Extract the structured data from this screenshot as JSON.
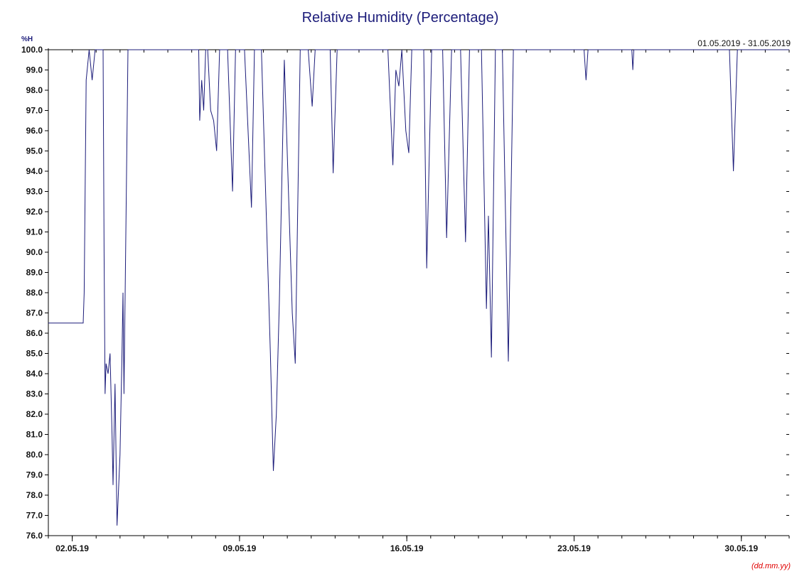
{
  "chart_data": {
    "type": "line",
    "title": "Relative Humidity (Percentage)",
    "ylabel": "%H",
    "xlabel_format": "(dd.mm.yy)",
    "date_range": "01.05.2019 - 31.05.2019",
    "x_start": "2019-05-01",
    "x_end": "2019-06-01",
    "ylim": [
      76,
      100
    ],
    "y_ticks": [
      "100.0",
      "99.0",
      "98.0",
      "97.0",
      "96.0",
      "95.0",
      "94.0",
      "93.0",
      "92.0",
      "91.0",
      "90.0",
      "89.0",
      "88.0",
      "87.0",
      "86.0",
      "85.0",
      "84.0",
      "83.0",
      "82.0",
      "81.0",
      "80.0",
      "79.0",
      "78.0",
      "77.0",
      "76.0"
    ],
    "x_ticks": [
      {
        "date": "2019-05-02",
        "label": "02.05.19"
      },
      {
        "date": "2019-05-09",
        "label": "09.05.19"
      },
      {
        "date": "2019-05-16",
        "label": "16.05.19"
      },
      {
        "date": "2019-05-23",
        "label": "23.05.19"
      },
      {
        "date": "2019-05-30",
        "label": "30.05.19"
      }
    ],
    "grid": false,
    "line_color": "#1c1c7a",
    "series": [
      {
        "name": "",
        "points": [
          [
            "2019-05-01 00:00",
            86.5
          ],
          [
            "2019-05-02 11:00",
            86.5
          ],
          [
            "2019-05-02 12:00",
            88.0
          ],
          [
            "2019-05-02 14:00",
            98.5
          ],
          [
            "2019-05-02 17:00",
            100.0
          ],
          [
            "2019-05-02 20:00",
            98.5
          ],
          [
            "2019-05-02 23:00",
            100.0
          ],
          [
            "2019-05-03 07:00",
            100.0
          ],
          [
            "2019-05-03 08:00",
            90.0
          ],
          [
            "2019-05-03 09:00",
            83.0
          ],
          [
            "2019-05-03 10:00",
            84.5
          ],
          [
            "2019-05-03 12:00",
            84.0
          ],
          [
            "2019-05-03 14:00",
            85.0
          ],
          [
            "2019-05-03 15:00",
            83.0
          ],
          [
            "2019-05-03 16:00",
            81.0
          ],
          [
            "2019-05-03 17:00",
            78.5
          ],
          [
            "2019-05-03 19:00",
            83.5
          ],
          [
            "2019-05-03 21:00",
            76.5
          ],
          [
            "2019-05-04 00:00",
            80.0
          ],
          [
            "2019-05-04 02:00",
            85.0
          ],
          [
            "2019-05-04 03:00",
            88.0
          ],
          [
            "2019-05-04 04:00",
            83.0
          ],
          [
            "2019-05-04 08:00",
            100.0
          ],
          [
            "2019-05-07 07:00",
            100.0
          ],
          [
            "2019-05-07 08:00",
            96.5
          ],
          [
            "2019-05-07 10:00",
            98.5
          ],
          [
            "2019-05-07 12:00",
            97.0
          ],
          [
            "2019-05-07 14:00",
            100.0
          ],
          [
            "2019-05-07 16:00",
            100.0
          ],
          [
            "2019-05-07 19:00",
            97.0
          ],
          [
            "2019-05-07 22:00",
            96.5
          ],
          [
            "2019-05-08 01:00",
            95.0
          ],
          [
            "2019-05-08 04:00",
            100.0
          ],
          [
            "2019-05-08 12:00",
            100.0
          ],
          [
            "2019-05-08 17:00",
            93.0
          ],
          [
            "2019-05-08 20:00",
            100.0
          ],
          [
            "2019-05-09 05:00",
            100.0
          ],
          [
            "2019-05-09 12:00",
            92.2
          ],
          [
            "2019-05-09 15:00",
            100.0
          ],
          [
            "2019-05-09 22:00",
            100.0
          ],
          [
            "2019-05-10 07:00",
            85.0
          ],
          [
            "2019-05-10 10:00",
            79.2
          ],
          [
            "2019-05-10 13:00",
            82.0
          ],
          [
            "2019-05-10 16:00",
            87.5
          ],
          [
            "2019-05-10 21:00",
            99.5
          ],
          [
            "2019-05-11 05:00",
            87.0
          ],
          [
            "2019-05-11 08:00",
            84.5
          ],
          [
            "2019-05-11 13:00",
            100.0
          ],
          [
            "2019-05-11 21:00",
            100.0
          ],
          [
            "2019-05-12 01:00",
            97.2
          ],
          [
            "2019-05-12 04:00",
            100.0
          ],
          [
            "2019-05-12 19:00",
            100.0
          ],
          [
            "2019-05-12 22:00",
            93.9
          ],
          [
            "2019-05-13 02:00",
            100.0
          ],
          [
            "2019-05-15 05:00",
            100.0
          ],
          [
            "2019-05-15 10:00",
            94.3
          ],
          [
            "2019-05-15 13:00",
            99.0
          ],
          [
            "2019-05-15 16:00",
            98.2
          ],
          [
            "2019-05-15 19:00",
            100.0
          ],
          [
            "2019-05-15 23:00",
            96.0
          ],
          [
            "2019-05-16 02:00",
            94.9
          ],
          [
            "2019-05-16 05:00",
            100.0
          ],
          [
            "2019-05-16 17:00",
            100.0
          ],
          [
            "2019-05-16 20:00",
            89.2
          ],
          [
            "2019-05-17 01:00",
            100.0
          ],
          [
            "2019-05-17 12:00",
            100.0
          ],
          [
            "2019-05-17 16:00",
            90.7
          ],
          [
            "2019-05-17 21:00",
            100.0
          ],
          [
            "2019-05-18 06:00",
            100.0
          ],
          [
            "2019-05-18 11:00",
            90.5
          ],
          [
            "2019-05-18 15:00",
            100.0
          ],
          [
            "2019-05-19 03:00",
            100.0
          ],
          [
            "2019-05-19 08:00",
            87.2
          ],
          [
            "2019-05-19 10:00",
            91.8
          ],
          [
            "2019-05-19 13:00",
            84.8
          ],
          [
            "2019-05-19 17:00",
            100.0
          ],
          [
            "2019-05-20 00:00",
            100.0
          ],
          [
            "2019-05-20 06:00",
            84.6
          ],
          [
            "2019-05-20 11:00",
            100.0
          ],
          [
            "2019-05-23 10:00",
            100.0
          ],
          [
            "2019-05-23 12:00",
            98.5
          ],
          [
            "2019-05-23 14:00",
            100.0
          ],
          [
            "2019-05-25 10:00",
            100.0
          ],
          [
            "2019-05-25 11:00",
            99.0
          ],
          [
            "2019-05-25 12:00",
            100.0
          ],
          [
            "2019-05-29 12:00",
            100.0
          ],
          [
            "2019-05-29 16:00",
            94.0
          ],
          [
            "2019-05-29 20:00",
            100.0
          ],
          [
            "2019-05-31 23:59",
            100.0
          ]
        ]
      }
    ]
  }
}
